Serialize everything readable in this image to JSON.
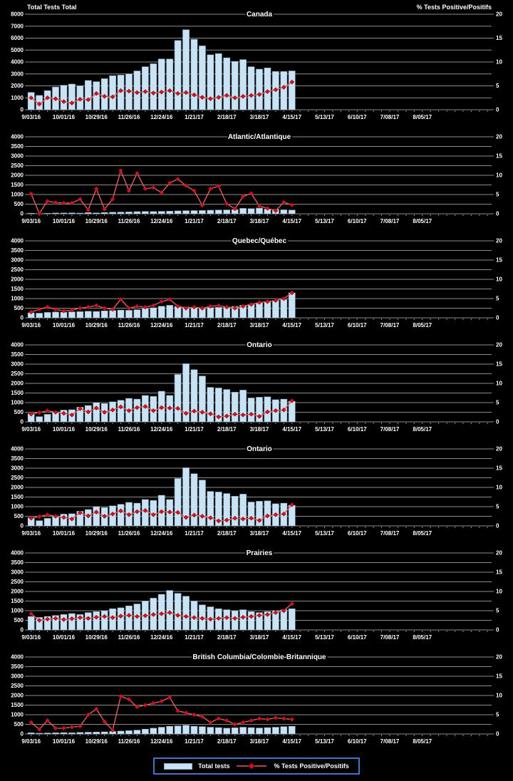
{
  "page": {
    "background": "#000000"
  },
  "axis_titles": {
    "left": "Total Tests Total",
    "right": "% Tests Positive/Positifs"
  },
  "legend": {
    "bars_label": "Total tests",
    "line_label": "% Tests Positive/Positifs"
  },
  "colors": {
    "background": "#000000",
    "gridline": "#8C8C8C",
    "text": "#FFFFFF",
    "bar_fill": "#C9E3F5",
    "bar_stroke": "#8FAEC6",
    "line": "#E06060",
    "marker": "#CE1126",
    "legend_border": "#4472C4"
  },
  "x_axis": {
    "total_slots": 57,
    "tick_every": 4,
    "tick_labels": [
      "9/03/16",
      "10/01/16",
      "10/29/16",
      "11/26/16",
      "12/24/16",
      "1/21/17",
      "2/18/17",
      "3/18/17",
      "4/15/17",
      "5/13/17",
      "6/10/17",
      "7/08/17",
      "8/05/17"
    ]
  },
  "chart_data": [
    {
      "type": "bar-line",
      "title": "Canada",
      "ylim": [
        0,
        8000
      ],
      "ytick_step": 1000,
      "y2lim": [
        0,
        20
      ],
      "y2tick_step": 5,
      "series": [
        {
          "name": "Total tests",
          "type": "bar",
          "values": [
            1450,
            1200,
            1600,
            1900,
            2050,
            2150,
            2000,
            2450,
            2350,
            2600,
            2850,
            2900,
            3000,
            3250,
            3600,
            3850,
            4250,
            4250,
            5800,
            6700,
            5900,
            5350,
            4600,
            4700,
            4350,
            4050,
            4200,
            3600,
            3400,
            3500,
            3200,
            3200,
            3250
          ]
        },
        {
          "name": "% Tests Positive/Positifs",
          "type": "line",
          "axis": "right",
          "values": [
            2.5,
            1.2,
            2.5,
            2.3,
            1.7,
            1.4,
            2.2,
            2.1,
            3.4,
            2.8,
            2.7,
            4.0,
            3.9,
            3.6,
            3.8,
            3.5,
            3.7,
            4.0,
            3.4,
            3.6,
            3.1,
            2.6,
            2.3,
            2.6,
            3.0,
            2.5,
            2.8,
            3.0,
            3.2,
            3.8,
            4.2,
            4.7,
            5.8
          ]
        }
      ]
    },
    {
      "type": "bar-line",
      "title": "Atlantic/Atlantique",
      "ylim": [
        0,
        4000
      ],
      "ytick_step": 500,
      "y2lim": [
        0,
        20
      ],
      "y2tick_step": 5,
      "series": [
        {
          "name": "Total tests",
          "type": "bar",
          "values": [
            30,
            15,
            25,
            40,
            40,
            45,
            35,
            60,
            45,
            65,
            80,
            85,
            95,
            110,
            120,
            115,
            125,
            135,
            150,
            160,
            165,
            170,
            185,
            195,
            200,
            215,
            280,
            265,
            295,
            245,
            230,
            205,
            190
          ]
        },
        {
          "name": "% Tests Positive/Positifs",
          "type": "line",
          "axis": "right",
          "values": [
            5.2,
            0.1,
            3.3,
            2.9,
            2.8,
            2.8,
            3.8,
            1.0,
            6.5,
            1.2,
            3.8,
            11.2,
            6.0,
            10.5,
            6.5,
            6.8,
            5.5,
            8.0,
            9.0,
            7.3,
            6.0,
            2.2,
            6.5,
            7.2,
            2.6,
            1.3,
            4.5,
            5.3,
            2.0,
            1.4,
            0.8,
            3.0,
            2.3
          ]
        }
      ]
    },
    {
      "type": "bar-line",
      "title": "Quebec/Québec",
      "ylim": [
        0,
        4000
      ],
      "ytick_step": 500,
      "y2lim": [
        0,
        20
      ],
      "y2tick_step": 5,
      "series": [
        {
          "name": "Total tests",
          "type": "bar",
          "values": [
            260,
            240,
            280,
            300,
            290,
            310,
            320,
            340,
            330,
            360,
            380,
            400,
            390,
            420,
            480,
            520,
            600,
            650,
            600,
            560,
            520,
            500,
            530,
            550,
            570,
            590,
            650,
            700,
            780,
            850,
            900,
            950,
            1300
          ]
        },
        {
          "name": "% Tests Positive/Positifs",
          "type": "line",
          "axis": "right",
          "values": [
            1.5,
            2.2,
            2.8,
            2.2,
            1.8,
            2.0,
            2.5,
            2.8,
            3.2,
            2.5,
            2.2,
            4.8,
            2.5,
            3.0,
            2.8,
            3.2,
            4.2,
            4.8,
            3.0,
            2.5,
            2.8,
            2.5,
            3.0,
            3.2,
            2.8,
            2.5,
            3.0,
            3.5,
            4.0,
            4.2,
            4.5,
            5.0,
            6.5
          ]
        }
      ]
    },
    {
      "type": "bar-line",
      "title": "Ontario",
      "ylim": [
        0,
        4000
      ],
      "ytick_step": 500,
      "y2lim": [
        0,
        20
      ],
      "y2tick_step": 5,
      "series": [
        {
          "name": "Total tests",
          "type": "bar",
          "values": [
            430,
            270,
            390,
            520,
            610,
            630,
            760,
            850,
            1000,
            950,
            1040,
            1120,
            1220,
            1180,
            1370,
            1320,
            1590,
            1370,
            2460,
            3020,
            2710,
            2380,
            1790,
            1760,
            1680,
            1540,
            1650,
            1240,
            1280,
            1300,
            1150,
            1180,
            1070
          ]
        },
        {
          "name": "% Tests Positive/Positifs",
          "type": "line",
          "axis": "right",
          "values": [
            2.0,
            2.4,
            2.9,
            2.5,
            2.2,
            1.8,
            3.4,
            2.6,
            3.6,
            2.5,
            3.1,
            3.9,
            2.9,
            3.7,
            4.0,
            2.9,
            3.7,
            3.6,
            3.5,
            2.2,
            2.8,
            2.5,
            2.1,
            1.3,
            1.5,
            2.0,
            1.8,
            2.0,
            1.4,
            2.6,
            2.9,
            3.1,
            5.5
          ]
        }
      ]
    },
    {
      "type": "bar-line",
      "title": "Ontario",
      "ylim": [
        0,
        4000
      ],
      "ytick_step": 500,
      "y2lim": [
        0,
        20
      ],
      "y2tick_step": 5,
      "series": [
        {
          "name": "Total tests",
          "type": "bar",
          "values": [
            430,
            270,
            390,
            520,
            610,
            630,
            760,
            850,
            1000,
            950,
            1040,
            1120,
            1220,
            1180,
            1370,
            1320,
            1590,
            1370,
            2460,
            3020,
            2710,
            2380,
            1790,
            1760,
            1680,
            1540,
            1650,
            1240,
            1280,
            1300,
            1150,
            1180,
            1070
          ]
        },
        {
          "name": "% Tests Positive/Positifs",
          "type": "line",
          "axis": "right",
          "values": [
            2.0,
            2.4,
            2.9,
            2.5,
            2.2,
            1.8,
            3.4,
            2.6,
            3.6,
            2.5,
            3.1,
            3.9,
            2.9,
            3.7,
            4.0,
            2.9,
            3.7,
            3.6,
            3.5,
            2.2,
            2.8,
            2.5,
            2.1,
            1.3,
            1.5,
            2.0,
            1.8,
            2.0,
            1.4,
            2.6,
            2.9,
            3.1,
            5.5
          ]
        }
      ]
    },
    {
      "type": "bar-line",
      "title": "Prairies",
      "ylim": [
        0,
        4000
      ],
      "ytick_step": 500,
      "y2lim": [
        0,
        20
      ],
      "y2tick_step": 5,
      "series": [
        {
          "name": "Total tests",
          "type": "bar",
          "values": [
            700,
            650,
            700,
            750,
            800,
            850,
            800,
            900,
            950,
            1000,
            1100,
            1150,
            1250,
            1350,
            1500,
            1650,
            1850,
            2050,
            1900,
            1750,
            1500,
            1300,
            1200,
            1100,
            1050,
            1000,
            1050,
            950,
            900,
            950,
            1000,
            1050,
            1100
          ]
        },
        {
          "name": "% Tests Positive/Positifs",
          "type": "line",
          "axis": "right",
          "values": [
            4.2,
            2.5,
            2.8,
            3.0,
            2.7,
            2.9,
            3.2,
            3.0,
            3.3,
            3.5,
            3.2,
            3.6,
            3.8,
            3.5,
            3.7,
            4.0,
            4.2,
            4.5,
            3.8,
            3.5,
            3.2,
            3.0,
            2.8,
            3.0,
            3.2,
            3.0,
            3.3,
            3.5,
            3.8,
            4.0,
            4.5,
            5.0,
            6.8
          ]
        }
      ]
    },
    {
      "type": "bar-line",
      "title": "British Columbia/Colombie-Britannique",
      "ylim": [
        0,
        4000
      ],
      "ytick_step": 500,
      "y2lim": [
        0,
        20
      ],
      "y2tick_step": 5,
      "series": [
        {
          "name": "Total tests",
          "type": "bar",
          "values": [
            60,
            40,
            50,
            60,
            70,
            60,
            80,
            90,
            100,
            110,
            130,
            150,
            170,
            200,
            250,
            300,
            350,
            400,
            420,
            450,
            400,
            380,
            350,
            330,
            300,
            320,
            350,
            330,
            310,
            330,
            350,
            380,
            400
          ]
        },
        {
          "name": "% Tests Positive/Positifs",
          "type": "line",
          "axis": "right",
          "values": [
            3.0,
            1.2,
            3.5,
            1.5,
            1.5,
            1.8,
            2.0,
            5.0,
            6.5,
            3.2,
            1.0,
            9.8,
            9.0,
            7.0,
            7.5,
            8.0,
            8.5,
            9.5,
            6.0,
            5.5,
            5.0,
            4.5,
            3.0,
            4.0,
            3.5,
            2.5,
            3.0,
            3.5,
            4.0,
            3.8,
            4.2,
            4.0,
            3.8
          ]
        }
      ]
    }
  ]
}
